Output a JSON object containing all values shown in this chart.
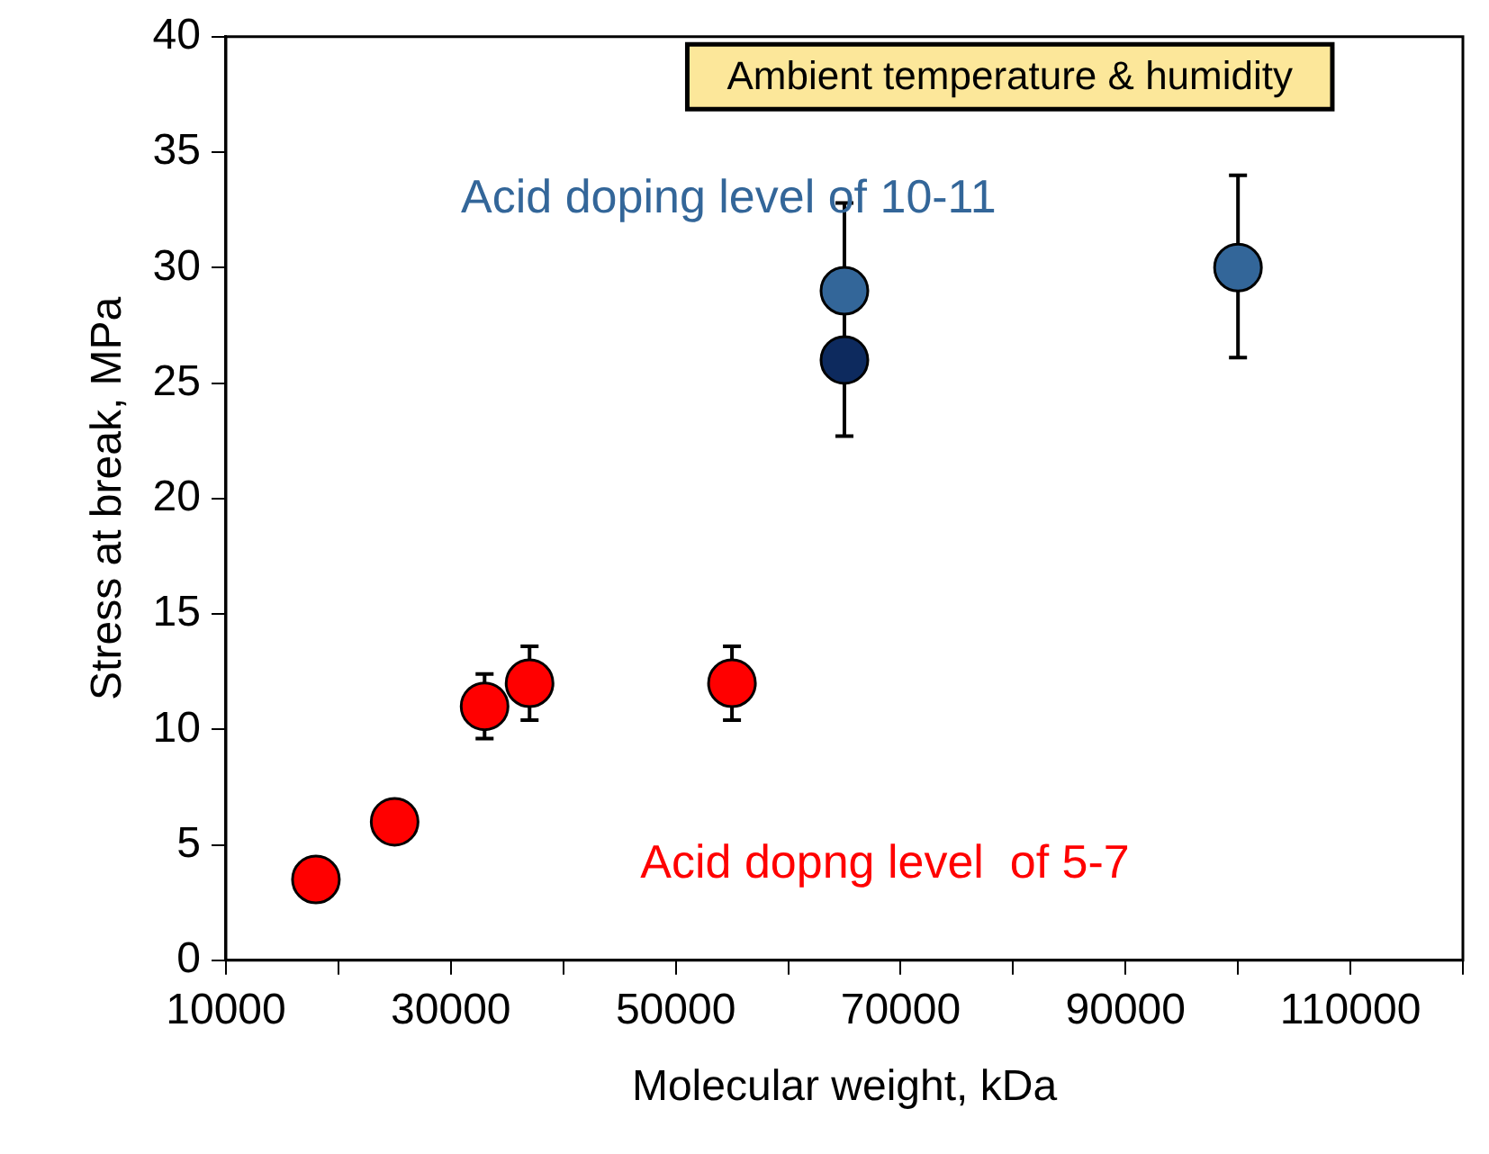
{
  "chart_data": {
    "type": "scatter",
    "xlabel": "Molecular weight, kDa",
    "ylabel": "Stress at break, MPa",
    "annotations": [
      "Ambient temperature & humidity",
      "Acid doping level of 10-11",
      "Acid dopng level  of 5-7"
    ],
    "series": [
      {
        "color": "#ff0000",
        "x": [
          18000,
          25000,
          33000,
          37000,
          55000
        ],
        "values": [
          3.5,
          6,
          11,
          12,
          12
        ],
        "errors": [
          null,
          null,
          [
            9.6,
            12.4
          ],
          [
            10.4,
            13.6
          ],
          [
            10.4,
            13.6
          ]
        ]
      },
      {
        "colors": [
          "#336699",
          "#0d2a5e",
          "#336699"
        ],
        "x": [
          65000,
          65000,
          100000
        ],
        "values": [
          29,
          26,
          30
        ],
        "errors": [
          [
            22.7,
            32.8
          ],
          null,
          [
            26.1,
            34
          ]
        ]
      }
    ],
    "xlim": [
      10000,
      120000
    ],
    "xticks": [
      10000,
      {
        "value": 20000,
        "label": null
      },
      30000,
      {
        "value": 40000,
        "label": null
      },
      50000,
      {
        "value": 60000,
        "label": null
      },
      70000,
      {
        "value": 80000,
        "label": null
      },
      90000,
      {
        "value": 100000,
        "label": null
      },
      110000,
      {
        "value": 120000,
        "label": null
      }
    ],
    "ylim": [
      0,
      40
    ],
    "yticks": [
      0,
      5,
      10,
      15,
      20,
      25,
      30,
      35,
      40
    ],
    "grid": false,
    "legend": false,
    "marker": "circle"
  }
}
